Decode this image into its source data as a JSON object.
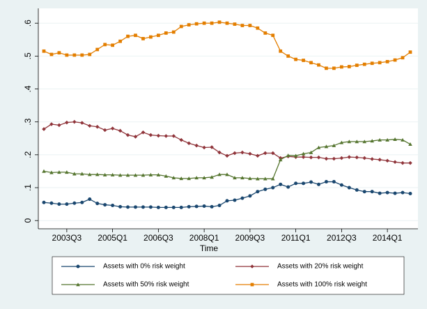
{
  "chart_data": {
    "type": "line",
    "x_label": "Time",
    "categories": [
      null,
      null,
      null,
      "2003Q3",
      null,
      null,
      null,
      null,
      null,
      "2005Q1",
      null,
      null,
      null,
      null,
      null,
      "2006Q3",
      null,
      null,
      null,
      null,
      null,
      "2008Q1",
      null,
      null,
      null,
      null,
      null,
      "2009Q3",
      null,
      null,
      null,
      null,
      null,
      "2011Q1",
      null,
      null,
      null,
      null,
      null,
      "2012Q3",
      null,
      null,
      null,
      null,
      null,
      "2014Q1",
      null,
      null,
      null
    ],
    "series": [
      {
        "name": "Assets with 0% risk weight",
        "color": "#1a476f",
        "marker": "circle",
        "values": [
          0.055,
          0.053,
          0.05,
          0.05,
          0.053,
          0.055,
          0.065,
          0.052,
          0.048,
          0.046,
          0.042,
          0.041,
          0.041,
          0.041,
          0.041,
          0.04,
          0.04,
          0.04,
          0.04,
          0.042,
          0.043,
          0.044,
          0.042,
          0.046,
          0.06,
          0.062,
          0.068,
          0.075,
          0.088,
          0.095,
          0.1,
          0.11,
          0.102,
          0.113,
          0.113,
          0.117,
          0.11,
          0.118,
          0.118,
          0.108,
          0.1,
          0.093,
          0.088,
          0.088,
          0.083,
          0.085,
          0.083,
          0.085,
          0.082
        ]
      },
      {
        "name": "Assets with 20% risk weight",
        "color": "#90353b",
        "marker": "diamond",
        "values": [
          0.278,
          0.293,
          0.29,
          0.298,
          0.3,
          0.297,
          0.288,
          0.285,
          0.275,
          0.28,
          0.273,
          0.26,
          0.255,
          0.268,
          0.26,
          0.258,
          0.257,
          0.257,
          0.245,
          0.235,
          0.228,
          0.222,
          0.223,
          0.207,
          0.197,
          0.205,
          0.207,
          0.203,
          0.197,
          0.205,
          0.205,
          0.19,
          0.195,
          0.193,
          0.193,
          0.192,
          0.192,
          0.188,
          0.188,
          0.19,
          0.193,
          0.192,
          0.19,
          0.187,
          0.185,
          0.182,
          0.178,
          0.175,
          0.175
        ]
      },
      {
        "name": "Assets with 50% risk weight",
        "color": "#55752f",
        "marker": "triangle",
        "values": [
          0.15,
          0.146,
          0.147,
          0.147,
          0.142,
          0.142,
          0.14,
          0.14,
          0.139,
          0.139,
          0.138,
          0.138,
          0.138,
          0.138,
          0.139,
          0.139,
          0.135,
          0.13,
          0.128,
          0.128,
          0.13,
          0.13,
          0.132,
          0.14,
          0.14,
          0.13,
          0.13,
          0.128,
          0.127,
          0.127,
          0.127,
          0.185,
          0.198,
          0.197,
          0.203,
          0.207,
          0.222,
          0.225,
          0.228,
          0.237,
          0.24,
          0.24,
          0.24,
          0.242,
          0.245,
          0.245,
          0.247,
          0.245,
          0.232
        ]
      },
      {
        "name": "Assets with 100% risk weight",
        "color": "#e37e00",
        "marker": "square",
        "values": [
          0.515,
          0.505,
          0.51,
          0.503,
          0.503,
          0.503,
          0.505,
          0.52,
          0.535,
          0.533,
          0.545,
          0.56,
          0.563,
          0.553,
          0.558,
          0.563,
          0.57,
          0.573,
          0.59,
          0.595,
          0.598,
          0.6,
          0.6,
          0.603,
          0.6,
          0.597,
          0.593,
          0.593,
          0.585,
          0.57,
          0.563,
          0.515,
          0.5,
          0.49,
          0.487,
          0.48,
          0.473,
          0.463,
          0.463,
          0.467,
          0.468,
          0.472,
          0.475,
          0.478,
          0.48,
          0.483,
          0.488,
          0.495,
          0.512
        ]
      }
    ],
    "ylim": [
      -0.025,
      0.645
    ],
    "yticks": [
      0,
      {
        "value": 0.1,
        "label": ".1"
      },
      {
        "value": 0.2,
        "label": ".2"
      },
      {
        "value": 0.3,
        "label": ".3"
      },
      {
        "value": 0.4,
        "label": ".4"
      },
      {
        "value": 0.5,
        "label": ".5"
      },
      {
        "value": 0.6,
        "label": ".6"
      }
    ],
    "grid": true
  }
}
